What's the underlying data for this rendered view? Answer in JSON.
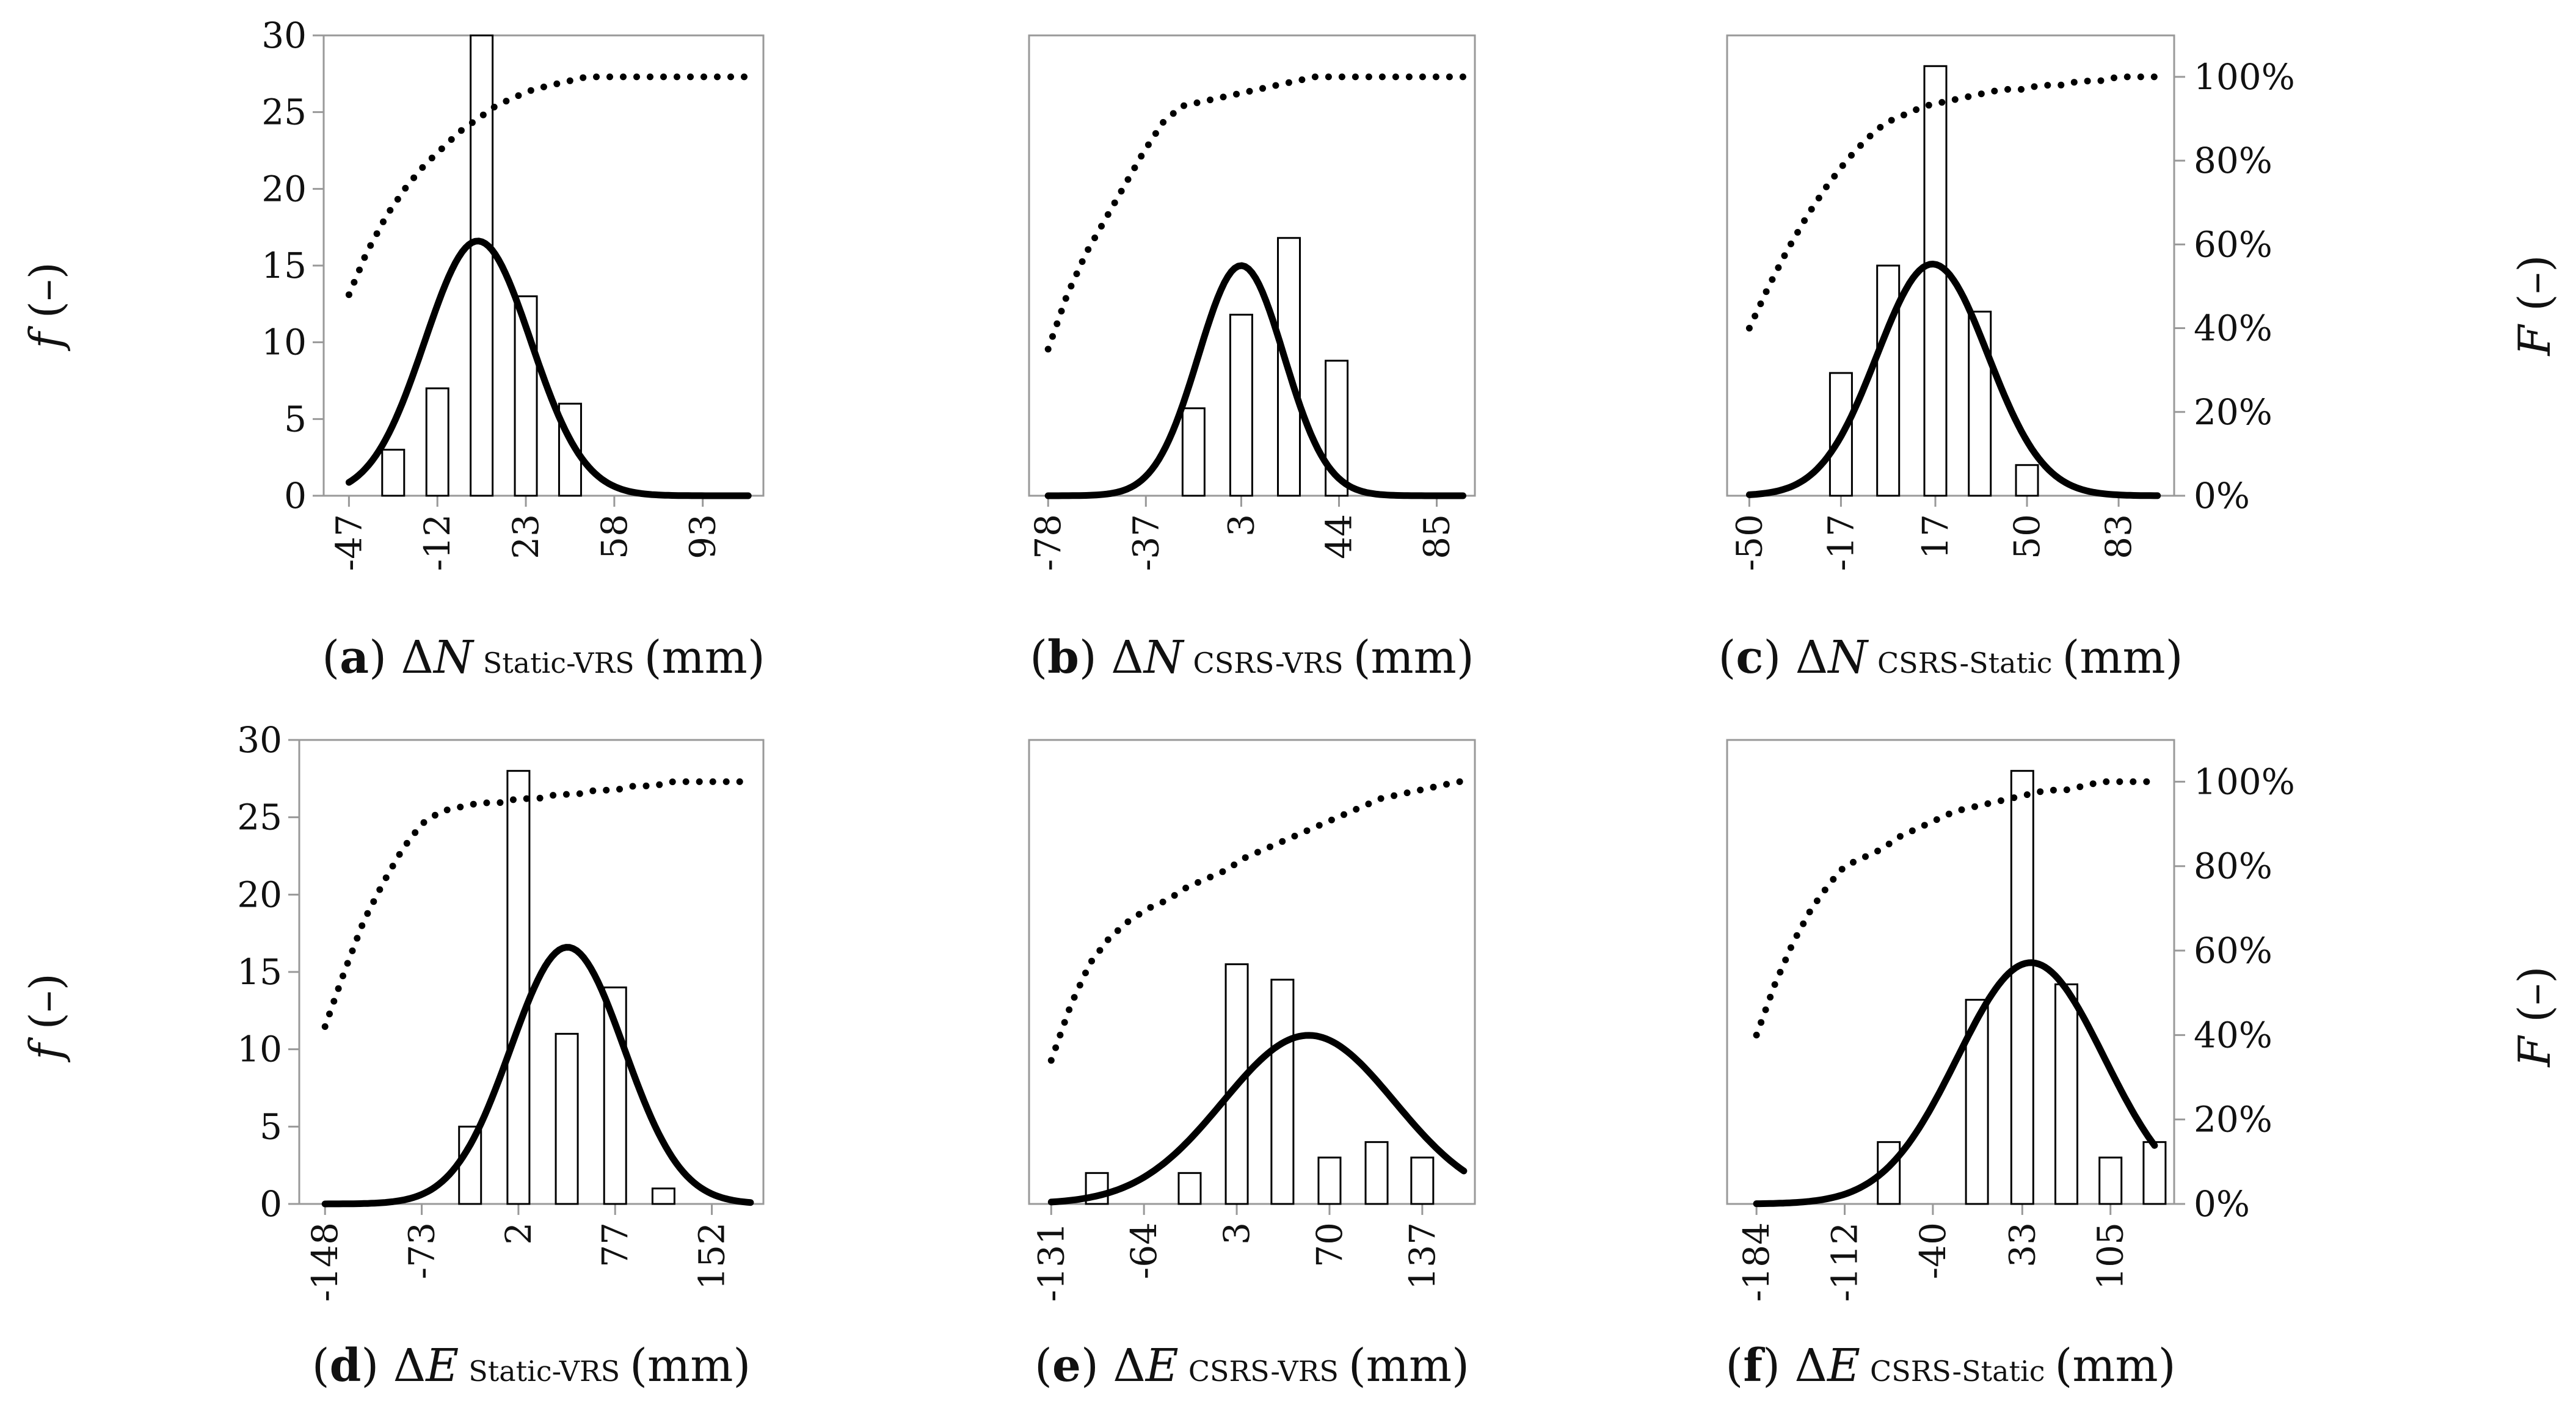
{
  "axes": {
    "left_title_italic": "f",
    "left_title_rest": " (–)",
    "right_title_italic": "F",
    "right_title_rest": " (–)"
  },
  "chart_data": [
    {
      "type": "bar",
      "panel": "a",
      "caption": {
        "letter": "a",
        "delta": "Δ",
        "var": "N",
        "sub": "Static-VRS",
        "unit": "(mm)"
      },
      "categories": [
        "-47",
        "-12",
        "23",
        "58",
        "93"
      ],
      "bar_centers": [
        -29.5,
        -12,
        5.5,
        23,
        40.5
      ],
      "bar_values": [
        3,
        7,
        30,
        13,
        6
      ],
      "xlim": [
        -57,
        117
      ],
      "xticks": [
        -47,
        -12,
        23,
        58,
        93
      ],
      "ylim": [
        0,
        30
      ],
      "yticks": [
        0,
        5,
        10,
        15,
        20,
        25,
        30
      ],
      "left_axis": true,
      "right_axis": false,
      "normal_pdf": {
        "x_start": -47,
        "x_end": 111,
        "mean": 4,
        "sd": 21,
        "peak": 16.6
      },
      "cdf_percent": {
        "x": [
          -47,
          -40,
          -32,
          -24,
          -17,
          -10,
          -3,
          4,
          11,
          18,
          26,
          33,
          40,
          47,
          55,
          62,
          69,
          77,
          84,
          91,
          98,
          106,
          111
        ],
        "y": [
          48,
          58,
          67,
          74,
          79,
          83,
          87,
          90,
          93,
          95,
          97,
          98,
          99,
          100,
          100,
          100,
          100,
          100,
          100,
          100,
          100,
          100,
          100
        ]
      }
    },
    {
      "type": "bar",
      "panel": "b",
      "caption": {
        "letter": "b",
        "delta": "Δ",
        "var": "N",
        "sub": "CSRS-VRS",
        "unit": "(mm)"
      },
      "categories": [
        "-78",
        "-37",
        "3",
        "44",
        "85"
      ],
      "bar_centers": [
        -17,
        3,
        23,
        43
      ],
      "bar_values": [
        5.7,
        11.8,
        16.8,
        8.8
      ],
      "xlim": [
        -86,
        101
      ],
      "xticks": [
        -78,
        -37,
        3,
        44,
        85
      ],
      "ylim": [
        0,
        30
      ],
      "yticks": [
        0,
        5,
        10,
        15,
        20,
        25,
        30
      ],
      "left_axis": false,
      "right_axis": false,
      "normal_pdf": {
        "x_start": -78,
        "x_end": 96,
        "mean": 3,
        "sd": 18,
        "peak": 15
      },
      "cdf_percent": {
        "x": [
          -78,
          -70,
          -62,
          -54,
          -46,
          -38,
          -30,
          -22,
          -14,
          -6,
          2,
          10,
          18,
          26,
          34,
          42,
          50,
          58,
          66,
          74,
          82,
          90,
          96
        ],
        "y": [
          35,
          48,
          58,
          66,
          74,
          82,
          89,
          93,
          94,
          95,
          96,
          97,
          98,
          99,
          100,
          100,
          100,
          100,
          100,
          100,
          100,
          100,
          100
        ]
      }
    },
    {
      "type": "bar",
      "panel": "c",
      "caption": {
        "letter": "c",
        "delta": "Δ",
        "var": "N",
        "sub": "CSRS-Static",
        "unit": "(mm)"
      },
      "categories": [
        "-50",
        "-17",
        "17",
        "50",
        "83"
      ],
      "bar_centers": [
        -17,
        0,
        17,
        33,
        50
      ],
      "bar_values": [
        8,
        15,
        28,
        12,
        2
      ],
      "xlim": [
        -58,
        103
      ],
      "xticks": [
        -50,
        -17,
        17,
        50,
        83
      ],
      "ylim": [
        0,
        30
      ],
      "yticks": [
        0,
        5,
        10,
        15,
        20,
        25,
        30
      ],
      "left_axis": false,
      "right_axis": true,
      "right_ticklabels": [
        "0%",
        "20%",
        "40%",
        "60%",
        "80%",
        "100%"
      ],
      "normal_pdf": {
        "x_start": -50,
        "x_end": 97,
        "mean": 16,
        "sd": 20,
        "peak": 15.1
      },
      "cdf_percent": {
        "x": [
          -50,
          -43,
          -36,
          -29,
          -22,
          -15,
          -8,
          -1,
          6,
          13,
          20,
          27,
          34,
          41,
          48,
          55,
          62,
          69,
          76,
          83,
          90,
          97
        ],
        "y": [
          40,
          50,
          59,
          67,
          74,
          80,
          85,
          89,
          91,
          93,
          94,
          95,
          96,
          97,
          97,
          98,
          98,
          99,
          99,
          100,
          100,
          100
        ]
      }
    },
    {
      "type": "bar",
      "panel": "d",
      "caption": {
        "letter": "d",
        "delta": "Δ",
        "var": "E",
        "sub": "Static-VRS",
        "unit": "(mm)"
      },
      "categories": [
        "-148",
        "-73",
        "2",
        "77",
        "152"
      ],
      "bar_centers": [
        -35.5,
        2,
        39.5,
        77,
        114.5
      ],
      "bar_values": [
        5,
        28,
        11,
        14,
        1
      ],
      "xlim": [
        -168,
        192
      ],
      "xticks": [
        -148,
        -73,
        2,
        77,
        152
      ],
      "ylim": [
        0,
        30
      ],
      "yticks": [
        0,
        5,
        10,
        15,
        20,
        25,
        30
      ],
      "left_axis": true,
      "right_axis": false,
      "normal_pdf": {
        "x_start": -148,
        "x_end": 182,
        "mean": 40,
        "sd": 44,
        "peak": 16.6
      },
      "cdf_percent": {
        "x": [
          -148,
          -133,
          -118,
          -103,
          -88,
          -73,
          -58,
          -43,
          -28,
          -13,
          2,
          17,
          32,
          47,
          62,
          77,
          92,
          107,
          122,
          137,
          152,
          167,
          182
        ],
        "y": [
          42,
          55,
          67,
          76,
          84,
          90,
          93,
          94,
          95,
          95,
          96,
          96,
          97,
          97,
          98,
          98,
          99,
          99,
          100,
          100,
          100,
          100,
          100
        ]
      }
    },
    {
      "type": "bar",
      "panel": "e",
      "caption": {
        "letter": "e",
        "delta": "Δ",
        "var": "E",
        "sub": "CSRS-VRS",
        "unit": "(mm)"
      },
      "categories": [
        "-131",
        "-64",
        "3",
        "70",
        "137"
      ],
      "bar_centers": [
        -98,
        -31,
        3,
        36,
        70,
        104,
        137
      ],
      "bar_values": [
        2,
        2,
        15.5,
        14.5,
        3,
        4,
        3
      ],
      "xlim": [
        -147,
        175
      ],
      "xticks": [
        -131,
        -64,
        3,
        70,
        137
      ],
      "ylim": [
        0,
        30
      ],
      "yticks": [
        0,
        5,
        10,
        15,
        20,
        25,
        30
      ],
      "left_axis": false,
      "right_axis": false,
      "normal_pdf": {
        "x_start": -131,
        "x_end": 167,
        "mean": 55,
        "sd": 62,
        "peak": 10.9
      },
      "cdf_percent": {
        "x": [
          -131,
          -117,
          -103,
          -89,
          -75,
          -61,
          -47,
          -33,
          -19,
          -5,
          9,
          23,
          37,
          51,
          65,
          79,
          93,
          107,
          121,
          135,
          149,
          163,
          167
        ],
        "y": [
          34,
          47,
          57,
          63,
          67,
          70,
          72,
          75,
          77,
          79,
          82,
          84,
          86,
          88,
          90,
          92,
          94,
          96,
          97,
          98,
          99,
          100,
          100
        ]
      }
    },
    {
      "type": "bar",
      "panel": "f",
      "caption": {
        "letter": "f",
        "delta": "Δ",
        "var": "E",
        "sub": "CSRS-Static",
        "unit": "(mm)"
      },
      "categories": [
        "-184",
        "-112",
        "-40",
        "33",
        "105"
      ],
      "bar_centers": [
        -76,
        -4,
        33,
        69,
        105,
        141
      ],
      "bar_values": [
        4,
        13.2,
        28,
        14.2,
        3,
        4
      ],
      "xlim": [
        -208,
        157
      ],
      "xticks": [
        -184,
        -112,
        -40,
        33,
        105
      ],
      "ylim": [
        0,
        30
      ],
      "yticks": [
        0,
        5,
        10,
        15,
        20,
        25,
        30
      ],
      "left_axis": false,
      "right_axis": true,
      "right_ticklabels": [
        "0%",
        "20%",
        "40%",
        "60%",
        "80%",
        "100%"
      ],
      "normal_pdf": {
        "x_start": -184,
        "x_end": 141,
        "mean": 40,
        "sd": 60,
        "peak": 15.6
      },
      "cdf_percent": {
        "x": [
          -184,
          -169,
          -154,
          -139,
          -124,
          -112,
          -97,
          -82,
          -67,
          -52,
          -37,
          -22,
          -7,
          8,
          23,
          38,
          53,
          68,
          83,
          98,
          113,
          128,
          141
        ],
        "y": [
          40,
          52,
          62,
          70,
          76,
          80,
          82,
          84,
          87,
          89,
          91,
          93,
          94,
          95,
          96,
          97,
          98,
          98,
          99,
          100,
          100,
          100,
          100
        ]
      }
    }
  ]
}
